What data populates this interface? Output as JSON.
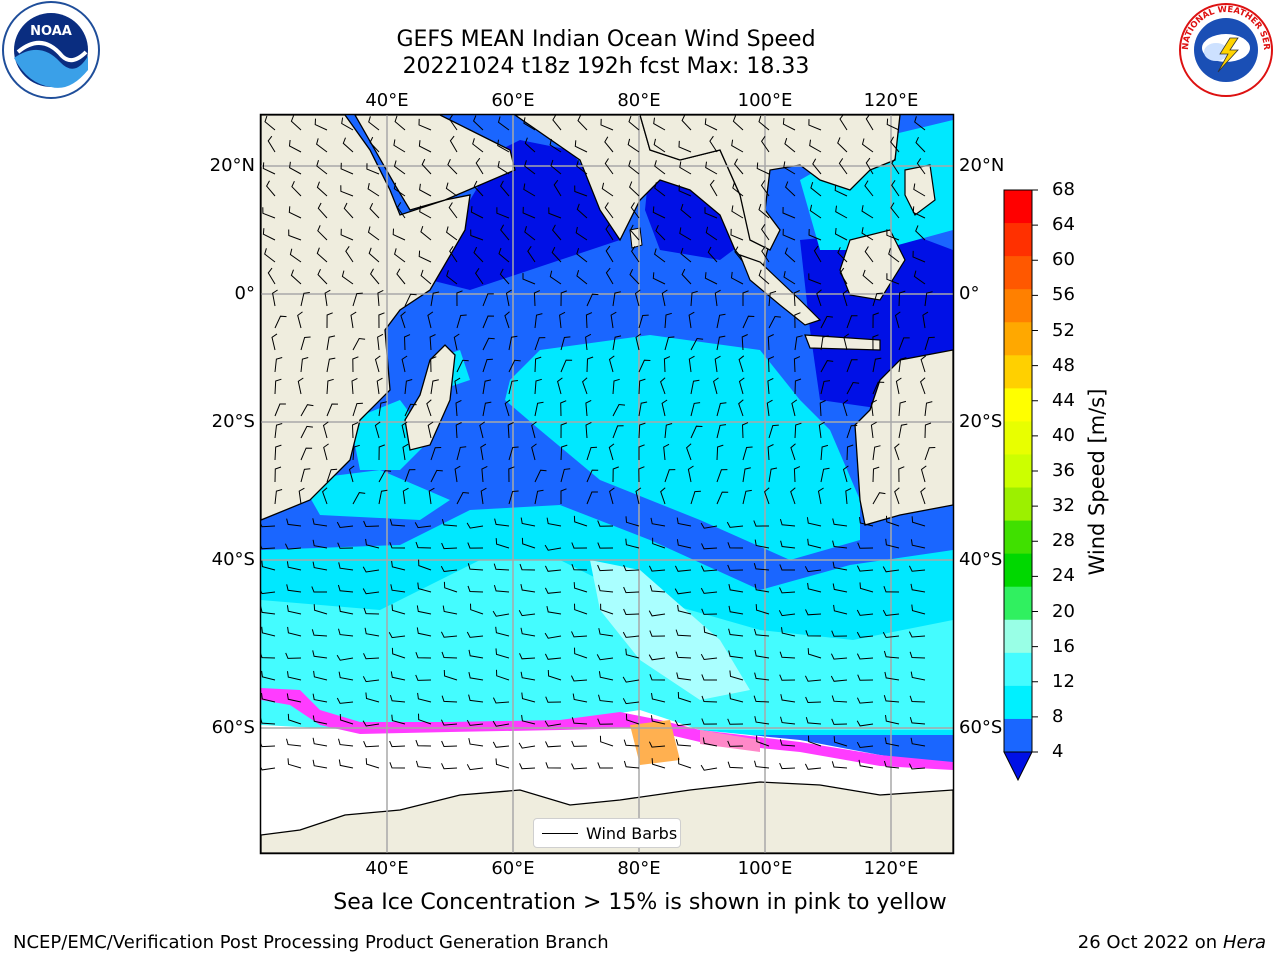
{
  "header": {
    "title": "GEFS MEAN Indian Ocean Wind Speed",
    "subtitle": "20221024 t18z 192h fcst   Max: 18.33"
  },
  "map": {
    "lon_labels": [
      "40°E",
      "60°E",
      "80°E",
      "100°E",
      "120°E"
    ],
    "lat_labels": [
      "20°N",
      "0°",
      "20°S",
      "40°S",
      "60°S"
    ],
    "land_color": "#efedde",
    "ice_free_shelf_color": "#ffffff",
    "legend_label": "Wind Barbs",
    "wind_speed_colors": {
      "4-8": "#1a66ff",
      "8-12": "#00e8ff",
      "12-16": "#44fcff",
      "16-20": "#aaffff",
      "below-4": "#0010e6"
    },
    "sea_ice_colors": [
      "#ff3cff",
      "#ff88c8",
      "#ffb050"
    ]
  },
  "colorbar": {
    "label": "Wind Speed [m/s]",
    "ticks": [
      "68",
      "64",
      "60",
      "56",
      "52",
      "48",
      "44",
      "40",
      "36",
      "32",
      "28",
      "24",
      "20",
      "16",
      "12",
      "8",
      "4"
    ],
    "colors": [
      "#ff0000",
      "#ff3000",
      "#ff5800",
      "#ff8000",
      "#ffa800",
      "#ffd000",
      "#ffff00",
      "#e8ff00",
      "#ccff00",
      "#9cf000",
      "#40e000",
      "#00d800",
      "#30f060",
      "#99ffe6",
      "#44fcff",
      "#00f0ff",
      "#1a66ff"
    ],
    "under_color": "#0010e6"
  },
  "annotations": {
    "note": "Sea Ice Concentration > 15% is shown in pink to yellow",
    "footer_left": "NCEP/EMC/Verification Post Processing Product Generation Branch",
    "footer_date": "26 Oct 2022 on",
    "footer_host": "Hera"
  },
  "logos": {
    "noaa_text": "NOAA",
    "nws_text": "NATIONAL WEATHER SERVICE"
  }
}
